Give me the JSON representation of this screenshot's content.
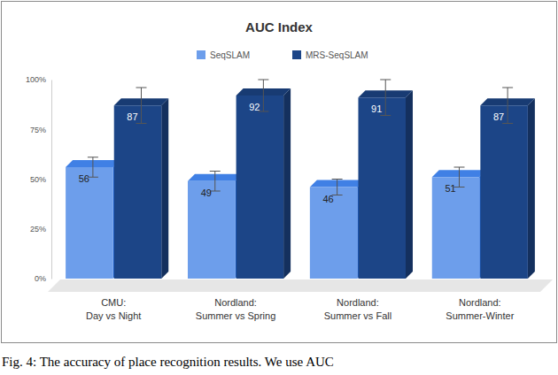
{
  "chart_data": {
    "type": "bar",
    "title": "AUC Index",
    "caption": "Fig. 4: The accuracy of place recognition results. We use AUC",
    "categories": [
      "CMU:\nDay vs Night",
      "Nordland:\nSummer vs Spring",
      "Nordland:\nSummer vs Fall",
      "Nordland:\nSummer-Winter"
    ],
    "series": [
      {
        "name": "SeqSLAM",
        "color": "#6d9eeb",
        "values": [
          56,
          49,
          46,
          51
        ],
        "errors": [
          5,
          5,
          4,
          5
        ]
      },
      {
        "name": "MRS-SeqSLAM",
        "color": "#1c4587",
        "values": [
          87,
          92,
          91,
          87
        ],
        "errors": [
          9,
          8,
          9,
          9
        ]
      }
    ],
    "ylim": [
      0,
      100
    ],
    "yticks": [
      {
        "value": 0,
        "label": "0%"
      },
      {
        "value": 25,
        "label": "25%"
      },
      {
        "value": 50,
        "label": "50%"
      },
      {
        "value": 75,
        "label": "75%"
      },
      {
        "value": 100,
        "label": "100%"
      }
    ],
    "grid": false,
    "legend": "top",
    "data_labels": true
  }
}
